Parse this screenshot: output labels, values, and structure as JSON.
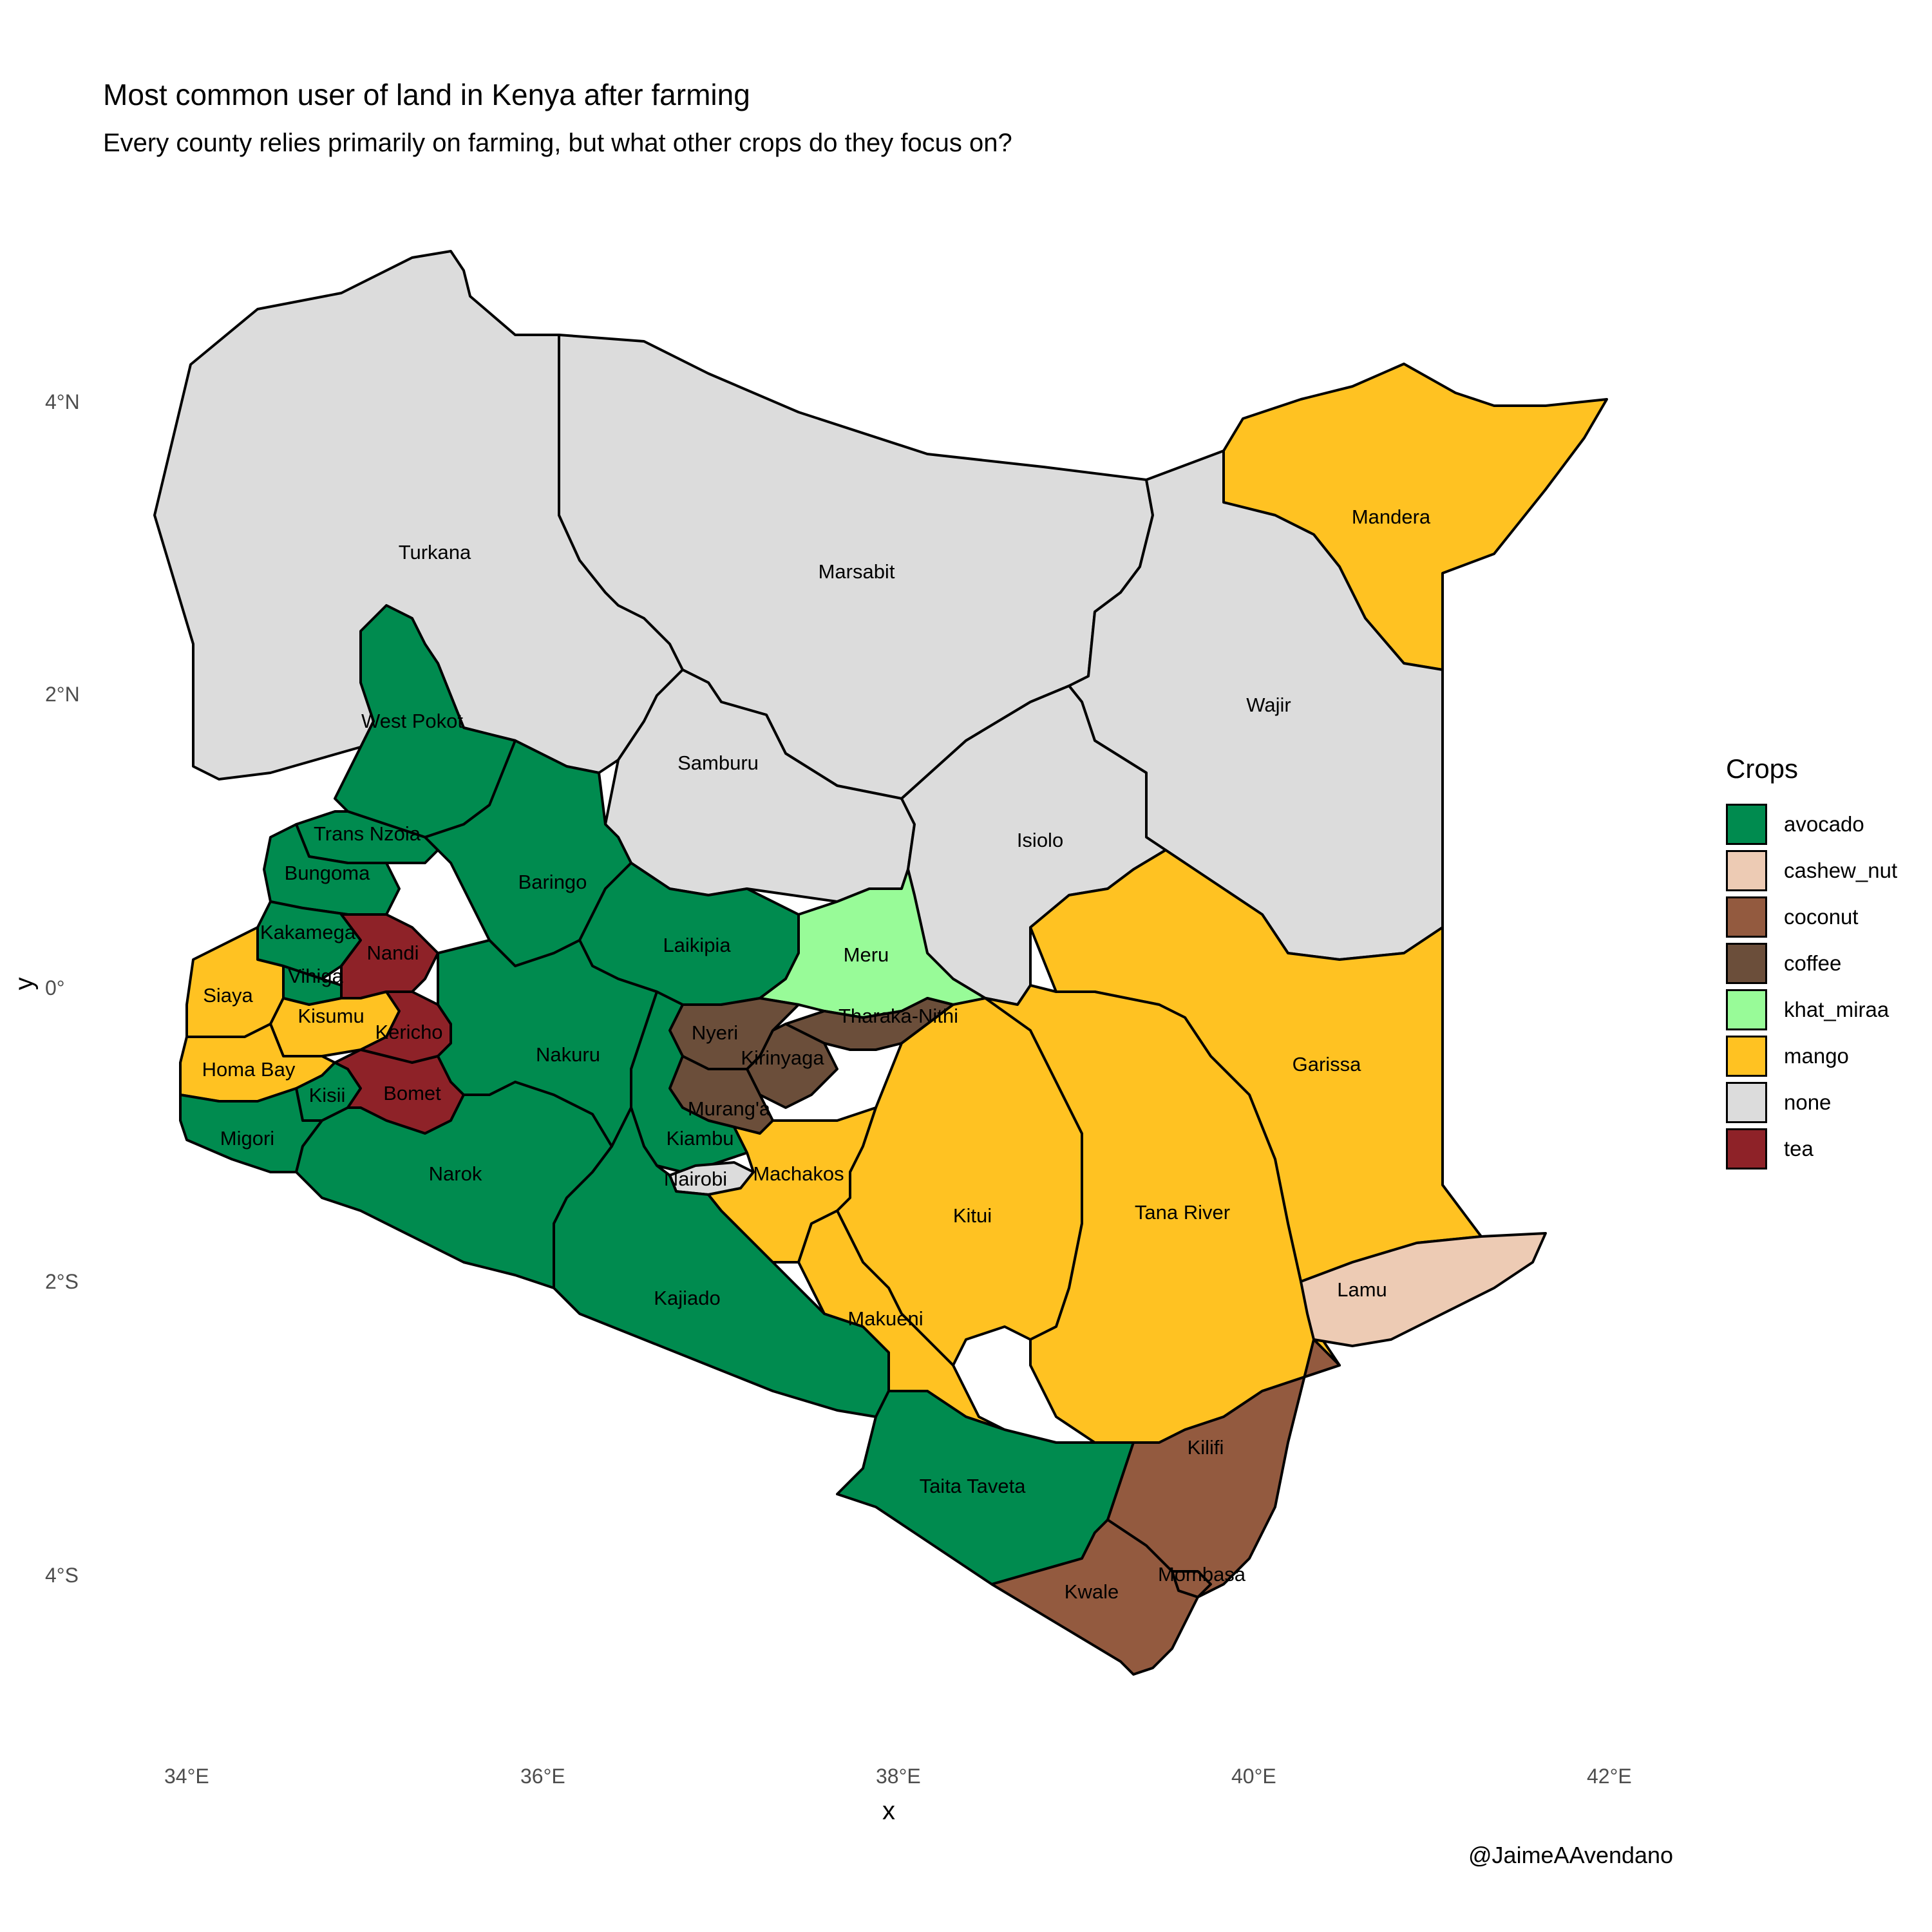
{
  "title": "Most common user of land in Kenya after farming",
  "subtitle": "Every county relies primarily on farming, but what other crops do they focus on?",
  "caption": "@JaimeAAvendano",
  "axes": {
    "xlabel": "x",
    "ylabel": "y",
    "xticks": [
      "34°E",
      "36°E",
      "38°E",
      "40°E",
      "42°E"
    ],
    "yticks": [
      "4°N",
      "2°N",
      "0°",
      "2°S",
      "4°S"
    ]
  },
  "legend": {
    "title": "Crops",
    "items": [
      {
        "label": "avocado",
        "color": "#008B4F"
      },
      {
        "label": "cashew_nut",
        "color": "#EDCBB4"
      },
      {
        "label": "coconut",
        "color": "#935A3F"
      },
      {
        "label": "coffee",
        "color": "#6B4E3A"
      },
      {
        "label": "khat_miraa",
        "color": "#98FB98"
      },
      {
        "label": "mango",
        "color": "#FFC222"
      },
      {
        "label": "none",
        "color": "#DCDCDC"
      },
      {
        "label": "tea",
        "color": "#8E2228"
      }
    ]
  },
  "chart_data": {
    "type": "choropleth",
    "title": "Most common user of land in Kenya after farming",
    "subtitle": "Every county relies primarily on farming, but what other crops do they focus on?",
    "xlabel": "x",
    "ylabel": "y",
    "counties": [
      {
        "name": "Turkana",
        "crop": "none"
      },
      {
        "name": "Marsabit",
        "crop": "none"
      },
      {
        "name": "Mandera",
        "crop": "mango"
      },
      {
        "name": "Wajir",
        "crop": "none"
      },
      {
        "name": "West Pokot",
        "crop": "avocado"
      },
      {
        "name": "Samburu",
        "crop": "none"
      },
      {
        "name": "Isiolo",
        "crop": "none"
      },
      {
        "name": "Trans Nzoia",
        "crop": "avocado"
      },
      {
        "name": "Bungoma",
        "crop": "avocado"
      },
      {
        "name": "Baringo",
        "crop": "avocado"
      },
      {
        "name": "Kakamega",
        "crop": "avocado"
      },
      {
        "name": "Nandi",
        "crop": "tea"
      },
      {
        "name": "Laikipia",
        "crop": "avocado"
      },
      {
        "name": "Meru",
        "crop": "khat_miraa"
      },
      {
        "name": "Vihiga",
        "crop": "avocado"
      },
      {
        "name": "Siaya",
        "crop": "mango"
      },
      {
        "name": "Kisumu",
        "crop": "mango"
      },
      {
        "name": "Kericho",
        "crop": "tea"
      },
      {
        "name": "Tharaka-Nithi",
        "crop": "coffee"
      },
      {
        "name": "Nyeri",
        "crop": "coffee"
      },
      {
        "name": "Kirinyaga",
        "crop": "coffee"
      },
      {
        "name": "Nakuru",
        "crop": "avocado"
      },
      {
        "name": "Garissa",
        "crop": "mango"
      },
      {
        "name": "Homa Bay",
        "crop": "mango"
      },
      {
        "name": "Kisii",
        "crop": "avocado"
      },
      {
        "name": "Bomet",
        "crop": "tea"
      },
      {
        "name": "Murang'a",
        "crop": "coffee"
      },
      {
        "name": "Migori",
        "crop": "avocado"
      },
      {
        "name": "Kiambu",
        "crop": "avocado"
      },
      {
        "name": "Narok",
        "crop": "avocado"
      },
      {
        "name": "Machakos",
        "crop": "mango"
      },
      {
        "name": "Nairobi",
        "crop": "none"
      },
      {
        "name": "Kitui",
        "crop": "mango"
      },
      {
        "name": "Tana River",
        "crop": "mango"
      },
      {
        "name": "Kajiado",
        "crop": "avocado"
      },
      {
        "name": "Lamu",
        "crop": "cashew_nut"
      },
      {
        "name": "Makueni",
        "crop": "mango"
      },
      {
        "name": "Kilifi",
        "crop": "coconut"
      },
      {
        "name": "Taita Taveta",
        "crop": "avocado"
      },
      {
        "name": "Mombasa",
        "crop": "coconut"
      },
      {
        "name": "Kwale",
        "crop": "coconut"
      }
    ]
  }
}
